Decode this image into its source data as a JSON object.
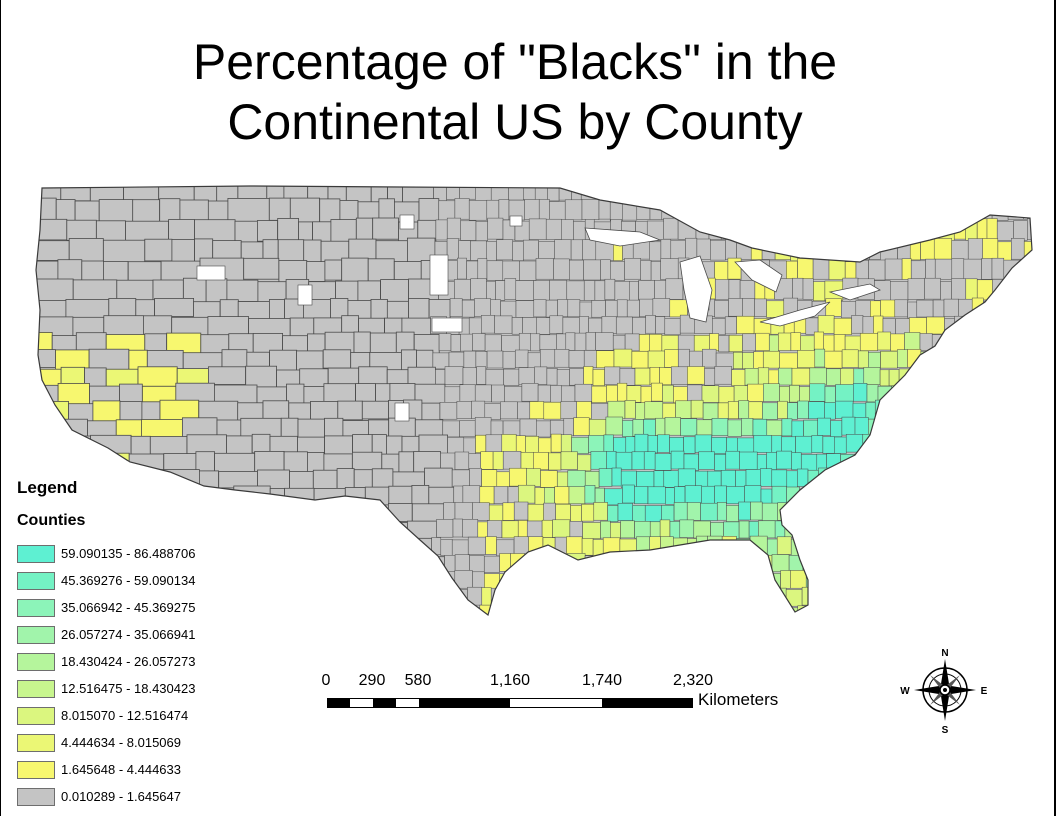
{
  "title": {
    "line1": "Percentage of \"Blacks\" in the",
    "line2": "Continental US by County"
  },
  "legend": {
    "heading": "Legend",
    "layer": "Counties",
    "classes": [
      {
        "label": "59.090135 - 86.488706",
        "color": "#5ef0d2"
      },
      {
        "label": "45.369276 - 59.090134",
        "color": "#74f2c4"
      },
      {
        "label": "35.066942 - 45.369275",
        "color": "#8cf4b9"
      },
      {
        "label": "26.057274 - 35.066941",
        "color": "#a1f4ab"
      },
      {
        "label": "18.430424 - 26.057273",
        "color": "#b5f59c"
      },
      {
        "label": "12.516475 - 18.430423",
        "color": "#c8f68e"
      },
      {
        "label": "8.015070 - 12.516474",
        "color": "#dbf67f"
      },
      {
        "label": "4.444634 - 8.015069",
        "color": "#ebf775"
      },
      {
        "label": "1.645648 - 4.444633",
        "color": "#f7f76f"
      },
      {
        "label": "0.010289 - 1.645647",
        "color": "#c4c4c4"
      }
    ]
  },
  "scale_bar": {
    "labels": [
      "0",
      "290",
      "580",
      "1,160",
      "1,740",
      "2,320"
    ],
    "unit": "Kilometers"
  },
  "north_arrow": {
    "n": "N",
    "s": "S",
    "e": "E",
    "w": "W"
  },
  "colors": {
    "county_border": "#4a4a4a",
    "no_data": "#ffffff"
  }
}
